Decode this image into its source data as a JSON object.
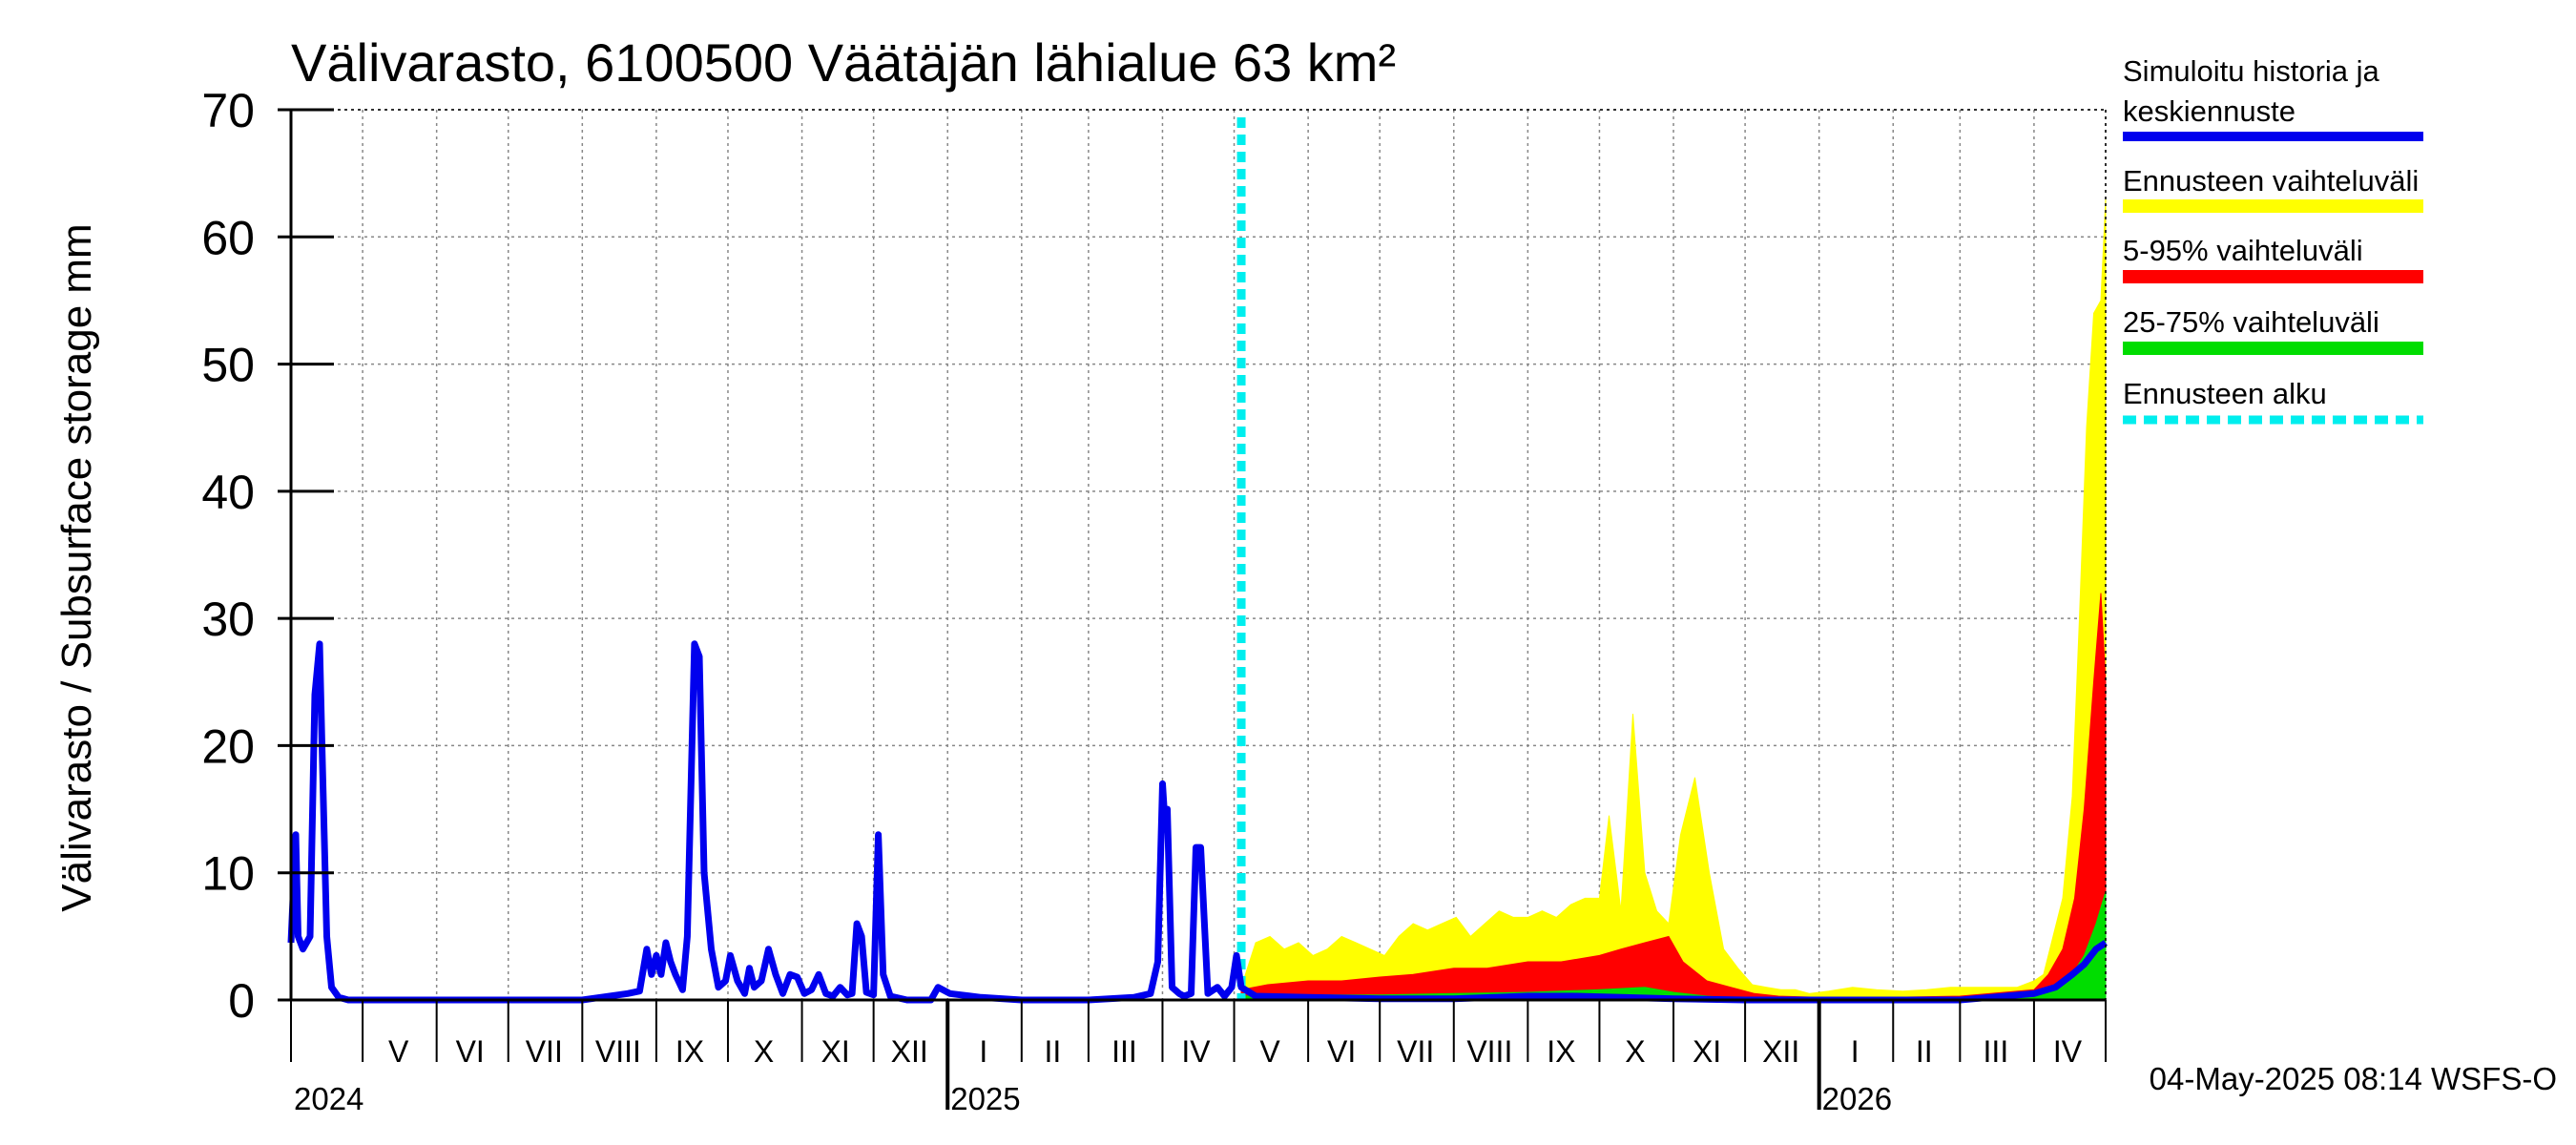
{
  "chart_data": {
    "type": "area",
    "title": "Välivarasto, 6100500 Väätäjän lähialue 63 km²",
    "ylabel": "Välivarasto / Subsurface storage  mm",
    "ylim": [
      0,
      70
    ],
    "yticks": [
      0,
      10,
      20,
      30,
      40,
      50,
      60,
      70
    ],
    "xlim": [
      "2024-04-01",
      "2026-05-01"
    ],
    "grid": true,
    "forecast_start": "2025-05-04",
    "timestamp": "04-May-2025 08:14 WSFS-O",
    "month_labels": [
      {
        "label": "V",
        "date": "2024-05-16"
      },
      {
        "label": "VI",
        "date": "2024-06-15"
      },
      {
        "label": "VII",
        "date": "2024-07-16"
      },
      {
        "label": "VIII",
        "date": "2024-08-16"
      },
      {
        "label": "IX",
        "date": "2024-09-15"
      },
      {
        "label": "X",
        "date": "2024-10-16"
      },
      {
        "label": "XI",
        "date": "2024-11-15"
      },
      {
        "label": "XII",
        "date": "2024-12-16"
      },
      {
        "label": "I",
        "date": "2025-01-16"
      },
      {
        "label": "II",
        "date": "2025-02-14"
      },
      {
        "label": "III",
        "date": "2025-03-16"
      },
      {
        "label": "IV",
        "date": "2025-04-15"
      },
      {
        "label": "V",
        "date": "2025-05-16"
      },
      {
        "label": "VI",
        "date": "2025-06-15"
      },
      {
        "label": "VII",
        "date": "2025-07-16"
      },
      {
        "label": "VIII",
        "date": "2025-08-16"
      },
      {
        "label": "IX",
        "date": "2025-09-15"
      },
      {
        "label": "X",
        "date": "2025-10-16"
      },
      {
        "label": "XI",
        "date": "2025-11-15"
      },
      {
        "label": "XII",
        "date": "2025-12-16"
      },
      {
        "label": "I",
        "date": "2026-01-16"
      },
      {
        "label": "II",
        "date": "2026-02-14"
      },
      {
        "label": "III",
        "date": "2026-03-16"
      },
      {
        "label": "IV",
        "date": "2026-04-15"
      }
    ],
    "year_labels": [
      {
        "label": "2024",
        "date": "2024-04-01"
      },
      {
        "label": "2025",
        "date": "2025-01-01"
      },
      {
        "label": "2026",
        "date": "2026-01-01"
      }
    ],
    "legend": [
      {
        "label": "Simuloitu historia ja keskiennuste",
        "color": "#0000ee",
        "style": "solid"
      },
      {
        "label": "Ennusteen vaihteluväli",
        "color": "#ffff00",
        "style": "solid"
      },
      {
        "label": "5-95% vaihteluväli",
        "color": "#ff0000",
        "style": "solid"
      },
      {
        "label": "25-75% vaihteluväli",
        "color": "#00dd00",
        "style": "solid"
      },
      {
        "label": "Ennusteen alku",
        "color": "#00eeee",
        "style": "dashed"
      }
    ],
    "legend_position": "right",
    "series": [
      {
        "name": "Simuloitu historia ja keskiennuste",
        "color": "#0000ee",
        "x": [
          "2024-04-01",
          "2024-04-03",
          "2024-04-04",
          "2024-04-06",
          "2024-04-09",
          "2024-04-11",
          "2024-04-13",
          "2024-04-14",
          "2024-04-16",
          "2024-04-18",
          "2024-04-21",
          "2024-04-25",
          "2024-05-01",
          "2024-06-01",
          "2024-07-01",
          "2024-08-01",
          "2024-08-20",
          "2024-08-25",
          "2024-08-28",
          "2024-08-30",
          "2024-09-01",
          "2024-09-03",
          "2024-09-05",
          "2024-09-07",
          "2024-09-09",
          "2024-09-12",
          "2024-09-14",
          "2024-09-17",
          "2024-09-19",
          "2024-09-21",
          "2024-09-24",
          "2024-09-27",
          "2024-09-30",
          "2024-10-02",
          "2024-10-05",
          "2024-10-08",
          "2024-10-10",
          "2024-10-12",
          "2024-10-15",
          "2024-10-18",
          "2024-10-21",
          "2024-10-24",
          "2024-10-27",
          "2024-10-30",
          "2024-11-02",
          "2024-11-05",
          "2024-11-08",
          "2024-11-11",
          "2024-11-14",
          "2024-11-17",
          "2024-11-20",
          "2024-11-22",
          "2024-11-24",
          "2024-11-26",
          "2024-11-28",
          "2024-12-01",
          "2024-12-03",
          "2024-12-05",
          "2024-12-08",
          "2024-12-15",
          "2024-12-25",
          "2024-12-28",
          "2025-01-02",
          "2025-01-15",
          "2025-02-01",
          "2025-03-01",
          "2025-03-20",
          "2025-03-27",
          "2025-03-30",
          "2025-04-01",
          "2025-04-02",
          "2025-04-03",
          "2025-04-05",
          "2025-04-08",
          "2025-04-10",
          "2025-04-13",
          "2025-04-15",
          "2025-04-17",
          "2025-04-20",
          "2025-04-24",
          "2025-04-27",
          "2025-04-30",
          "2025-05-02",
          "2025-05-04",
          "2025-05-10",
          "2025-06-01",
          "2025-07-01",
          "2025-08-01",
          "2025-09-01",
          "2025-09-20",
          "2025-10-10",
          "2025-11-01",
          "2025-12-01",
          "2026-01-01",
          "2026-02-01",
          "2026-03-01",
          "2026-04-01",
          "2026-04-10",
          "2026-04-17",
          "2026-04-22",
          "2026-04-27",
          "2026-05-01"
        ],
        "y": [
          4.5,
          13,
          5,
          4,
          5,
          24,
          28,
          20,
          5,
          1,
          0.2,
          0,
          0,
          0,
          0,
          0,
          0.5,
          0.7,
          4,
          2,
          3.5,
          2,
          4.5,
          3,
          2,
          0.8,
          5,
          28,
          27,
          10,
          4,
          1,
          1.5,
          3.5,
          1.5,
          0.5,
          2.5,
          1,
          1.5,
          4,
          2,
          0.5,
          2,
          1.8,
          0.5,
          0.8,
          2,
          0.5,
          0.3,
          1,
          0.4,
          0.5,
          6,
          5,
          0.6,
          0.4,
          13,
          2,
          0.3,
          0,
          0,
          1,
          0.5,
          0.2,
          0,
          0,
          0.2,
          0.5,
          3,
          17,
          14,
          15,
          1,
          0.5,
          0.3,
          0.5,
          12,
          12,
          0.5,
          1,
          0.3,
          1,
          3.5,
          1,
          0.3,
          0.2,
          0.1,
          0.1,
          0.3,
          0.3,
          0.2,
          0.1,
          0,
          0,
          0,
          0,
          0.5,
          1,
          2,
          2.8,
          4,
          4.5
        ]
      },
      {
        "name": "Ennusteen vaihteluväli",
        "color": "#ffff00",
        "x": [
          "2025-05-04",
          "2025-05-10",
          "2025-05-16",
          "2025-05-22",
          "2025-05-28",
          "2025-06-03",
          "2025-06-09",
          "2025-06-15",
          "2025-06-21",
          "2025-06-27",
          "2025-07-03",
          "2025-07-09",
          "2025-07-15",
          "2025-07-21",
          "2025-07-27",
          "2025-08-02",
          "2025-08-08",
          "2025-08-14",
          "2025-08-20",
          "2025-08-26",
          "2025-09-01",
          "2025-09-07",
          "2025-09-13",
          "2025-09-19",
          "2025-09-25",
          "2025-10-01",
          "2025-10-05",
          "2025-10-10",
          "2025-10-15",
          "2025-10-20",
          "2025-10-25",
          "2025-10-30",
          "2025-11-04",
          "2025-11-10",
          "2025-11-16",
          "2025-11-22",
          "2025-11-28",
          "2025-12-04",
          "2025-12-10",
          "2025-12-16",
          "2025-12-22",
          "2025-12-28",
          "2026-01-05",
          "2026-01-15",
          "2026-01-25",
          "2026-02-05",
          "2026-02-15",
          "2026-02-25",
          "2026-03-05",
          "2026-03-15",
          "2026-03-25",
          "2026-04-01",
          "2026-04-05",
          "2026-04-09",
          "2026-04-13",
          "2026-04-17",
          "2026-04-20",
          "2026-04-23",
          "2026-04-26",
          "2026-04-29",
          "2026-05-01"
        ],
        "y": [
          1,
          4.5,
          5,
          4,
          4.5,
          3.5,
          4,
          5,
          4.5,
          4,
          3.5,
          5,
          6,
          5.5,
          6,
          6.5,
          5,
          6,
          7,
          6.5,
          6.5,
          7,
          6.5,
          7.5,
          8,
          8,
          14.5,
          7,
          22.5,
          10,
          7,
          6,
          13,
          17.5,
          10,
          4,
          2.5,
          1.2,
          1,
          0.8,
          0.8,
          0.5,
          0.7,
          1,
          0.8,
          0.7,
          0.8,
          1,
          1,
          1,
          1,
          1.5,
          2,
          5,
          8,
          16,
          30,
          45,
          54,
          55,
          63
        ]
      },
      {
        "name": "5-95% vaihteluväli",
        "color": "#ff0000",
        "x": [
          "2025-05-04",
          "2025-05-15",
          "2025-06-01",
          "2025-06-15",
          "2025-07-01",
          "2025-07-15",
          "2025-08-01",
          "2025-08-15",
          "2025-09-01",
          "2025-09-15",
          "2025-10-01",
          "2025-10-10",
          "2025-10-20",
          "2025-10-30",
          "2025-11-05",
          "2025-11-15",
          "2025-11-25",
          "2025-12-05",
          "2025-12-15",
          "2026-01-01",
          "2026-02-01",
          "2026-03-01",
          "2026-04-01",
          "2026-04-07",
          "2026-04-13",
          "2026-04-18",
          "2026-04-22",
          "2026-04-26",
          "2026-04-29",
          "2026-05-01"
        ],
        "y": [
          0.8,
          1.2,
          1.5,
          1.5,
          1.8,
          2,
          2.5,
          2.5,
          3,
          3,
          3.5,
          4,
          4.5,
          5,
          3,
          1.5,
          1,
          0.5,
          0.3,
          0.2,
          0.2,
          0.3,
          0.8,
          2,
          4,
          8,
          15,
          25,
          32,
          25
        ]
      },
      {
        "name": "25-75% vaihteluväli",
        "color": "#00dd00",
        "x": [
          "2025-05-04",
          "2025-06-01",
          "2025-07-01",
          "2025-08-01",
          "2025-09-01",
          "2025-10-01",
          "2025-10-20",
          "2025-11-01",
          "2025-11-15",
          "2025-12-01",
          "2026-01-01",
          "2026-02-01",
          "2026-03-01",
          "2026-04-01",
          "2026-04-10",
          "2026-04-17",
          "2026-04-22",
          "2026-04-27",
          "2026-05-01"
        ],
        "y": [
          0.3,
          0.4,
          0.4,
          0.5,
          0.6,
          0.8,
          1,
          0.6,
          0.3,
          0.1,
          0,
          0,
          0,
          0.2,
          0.8,
          2,
          3.5,
          6,
          8.5
        ]
      }
    ]
  }
}
